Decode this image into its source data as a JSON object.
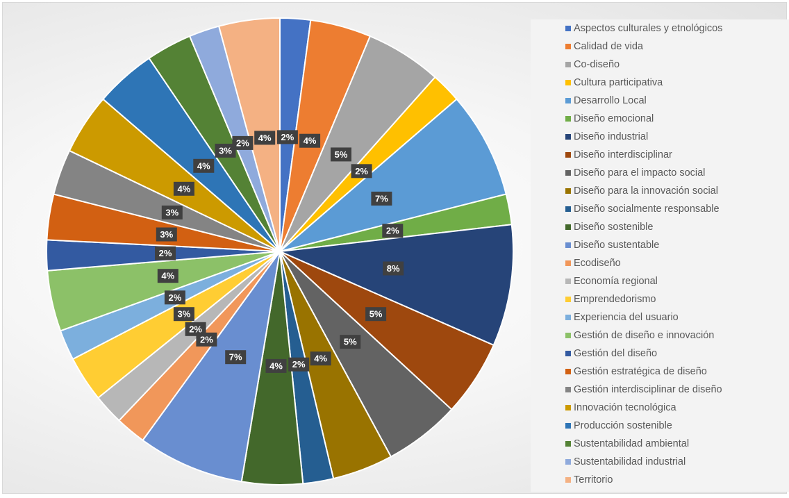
{
  "chart_data": {
    "type": "pie",
    "title": "",
    "legend_position": "right",
    "slices": [
      {
        "label": "Aspectos culturales y etnológicos",
        "value": 2,
        "value_label": "2%",
        "color": "#4472C4"
      },
      {
        "label": "Calidad de vida",
        "value": 4,
        "value_label": "4%",
        "color": "#ED7D31"
      },
      {
        "label": "Co-diseño",
        "value": 5,
        "value_label": "5%",
        "color": "#A5A5A5"
      },
      {
        "label": "Cultura participativa",
        "value": 2,
        "value_label": "2%",
        "color": "#FFC000"
      },
      {
        "label": "Desarrollo Local",
        "value": 7,
        "value_label": "7%",
        "color": "#5B9BD5"
      },
      {
        "label": "Diseño emocional",
        "value": 2,
        "value_label": "2%",
        "color": "#70AD47"
      },
      {
        "label": "Diseño industrial",
        "value": 8,
        "value_label": "8%",
        "color": "#264478"
      },
      {
        "label": "Diseño interdisciplinar",
        "value": 5,
        "value_label": "5%",
        "color": "#9E480E"
      },
      {
        "label": "Diseño para el impacto social",
        "value": 5,
        "value_label": "5%",
        "color": "#636363"
      },
      {
        "label": "Diseño para la innovación social",
        "value": 4,
        "value_label": "4%",
        "color": "#997300"
      },
      {
        "label": "Diseño socialmente responsable",
        "value": 2,
        "value_label": "2%",
        "color": "#255E91"
      },
      {
        "label": "Diseño sostenible",
        "value": 4,
        "value_label": "4%",
        "color": "#43682B"
      },
      {
        "label": "Diseño sustentable",
        "value": 7,
        "value_label": "7%",
        "color": "#698ED0"
      },
      {
        "label": "Ecodiseño",
        "value": 2,
        "value_label": "2%",
        "color": "#F1975A"
      },
      {
        "label": "Economía regional",
        "value": 2,
        "value_label": "2%",
        "color": "#B7B7B7"
      },
      {
        "label": "Emprendedorismo",
        "value": 3,
        "value_label": "3%",
        "color": "#FFCD33"
      },
      {
        "label": "Experiencia del usuario",
        "value": 2,
        "value_label": "2%",
        "color": "#7CAFDD"
      },
      {
        "label": "Gestión de diseño e innovación",
        "value": 4,
        "value_label": "4%",
        "color": "#8CC168"
      },
      {
        "label": "Gestión del diseño",
        "value": 2,
        "value_label": "2%",
        "color": "#335AA1"
      },
      {
        "label": "Gestión estratégica de diseño",
        "value": 3,
        "value_label": "3%",
        "color": "#D26012"
      },
      {
        "label": "Gestión interdisciplinar de diseño",
        "value": 3,
        "value_label": "3%",
        "color": "#848484"
      },
      {
        "label": "Innovación tecnológica",
        "value": 4,
        "value_label": "4%",
        "color": "#CC9A00"
      },
      {
        "label": "Producción sostenible",
        "value": 4,
        "value_label": "4%",
        "color": "#2E75B6"
      },
      {
        "label": "Sustentabilidad ambiental",
        "value": 3,
        "value_label": "3%",
        "color": "#548235"
      },
      {
        "label": "Sustentabilidad industrial",
        "value": 2,
        "value_label": "2%",
        "color": "#8FAADC"
      },
      {
        "label": "Territorio",
        "value": 4,
        "value_label": "4%",
        "color": "#F4B183"
      }
    ]
  }
}
